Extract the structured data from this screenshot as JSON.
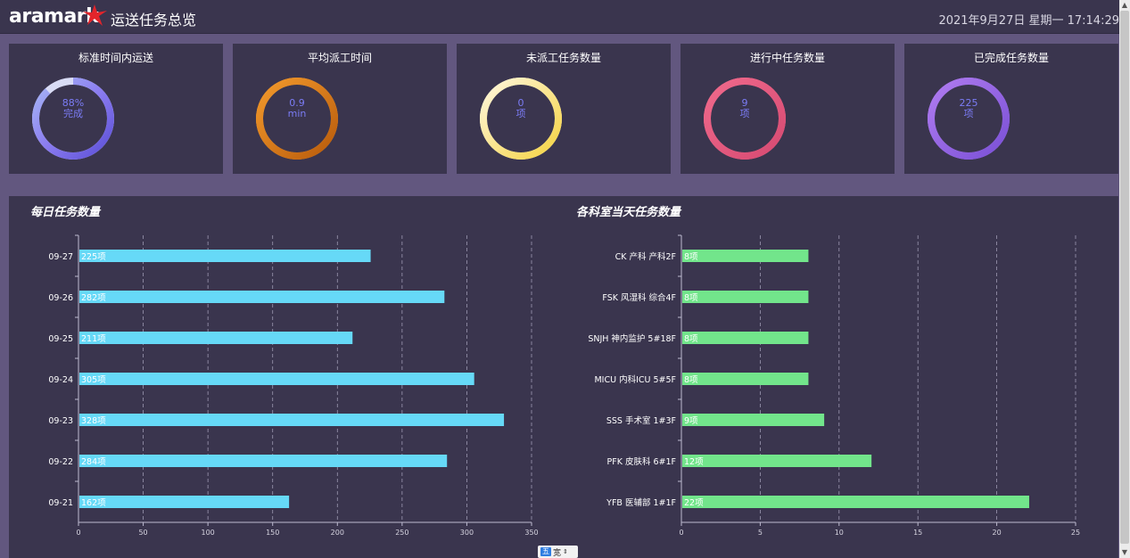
{
  "header": {
    "logo": "aramark",
    "title": "运送任务总览",
    "datetime": "2021年9月27日 星期一 17:14:29"
  },
  "kpis": [
    {
      "title": "标准时间内运送",
      "value": "88%",
      "unit": "完成",
      "fraction": 0.88,
      "colors": [
        "#5b4fd6",
        "#8b7cf0",
        "#a7b8f5"
      ],
      "track": "#d9dcf5"
    },
    {
      "title": "平均派工时间",
      "value": "0.9",
      "unit": "min",
      "fraction": 1,
      "colors": [
        "#b85b0c",
        "#f39a2c"
      ],
      "track": "#f39a2c"
    },
    {
      "title": "未派工任务数量",
      "value": "0",
      "unit": "项",
      "fraction": 1,
      "colors": [
        "#f5d342",
        "#fff7de"
      ],
      "track": "#fff7de"
    },
    {
      "title": "进行中任务数量",
      "value": "9",
      "unit": "项",
      "fraction": 1,
      "colors": [
        "#d64a72",
        "#f06a8c"
      ],
      "track": "#f06a8c"
    },
    {
      "title": "已完成任务数量",
      "value": "225",
      "unit": "项",
      "fraction": 1,
      "colors": [
        "#7a50d6",
        "#b07cf0"
      ],
      "track": "#b07cf0"
    }
  ],
  "value_color": "#7b7cf5",
  "chart_data": [
    {
      "type": "bar",
      "title": "每日任务数量",
      "categories": [
        "09-27",
        "09-26",
        "09-25",
        "09-24",
        "09-23",
        "09-22",
        "09-21"
      ],
      "values": [
        225,
        282,
        211,
        305,
        328,
        284,
        162
      ],
      "labels": [
        "225项",
        "282项",
        "211项",
        "305项",
        "328项",
        "284项",
        "162项"
      ],
      "xlim": [
        0,
        350
      ],
      "ticks": [
        "0",
        "50",
        "100",
        "150",
        "200",
        "250",
        "300",
        "350"
      ],
      "color": "#66d9f7",
      "grid": true
    },
    {
      "type": "bar",
      "title": "各科室当天任务数量",
      "categories": [
        "CK 产科 产科2F",
        "FSK 风湿科 综合4F",
        "SNJH 神内监护 5#18F",
        "MICU 内科ICU 5#5F",
        "SSS 手术室 1#3F",
        "PFK 皮肤科 6#1F",
        "YFB 医辅部 1#1F"
      ],
      "values": [
        8,
        8,
        8,
        8,
        9,
        12,
        22
      ],
      "labels": [
        "8项",
        "8项",
        "8项",
        "8项",
        "9项",
        "12项",
        "22项"
      ],
      "xlim": [
        0,
        25
      ],
      "ticks": [
        "0",
        "5",
        "10",
        "15",
        "20",
        "25"
      ],
      "color": "#72e58b",
      "grid": true
    }
  ],
  "pager": {
    "badge": "五",
    "text": "宽"
  }
}
